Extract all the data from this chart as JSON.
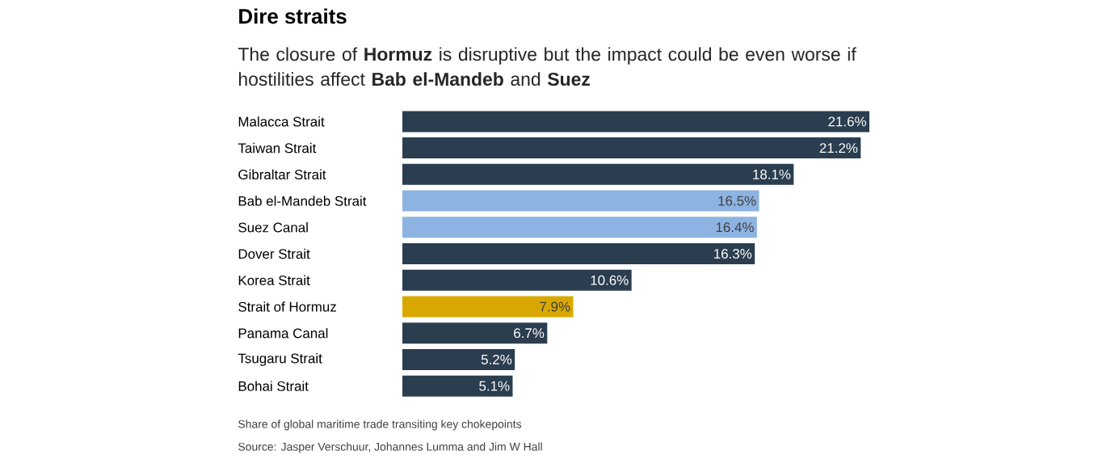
{
  "chart_data": {
    "type": "bar",
    "orientation": "horizontal",
    "title": "Dire straits",
    "subtitle": "The closure of **Hormuz** is disruptive but the impact could be even worse if hostilities affect **Bab el-Mandeb** and **Suez**",
    "categories": [
      "Malacca Strait",
      "Taiwan Strait",
      "Gibraltar Strait",
      "Bab el-Mandeb Strait",
      "Suez Canal",
      "Dover Strait",
      "Korea Strait",
      "Strait of Hormuz",
      "Panama Canal",
      "Tsugaru Strait",
      "Bohai Strait"
    ],
    "values": [
      21.6,
      21.2,
      18.1,
      16.5,
      16.4,
      16.3,
      10.6,
      7.9,
      6.7,
      5.2,
      5.1
    ],
    "colors": [
      "#2b3e50",
      "#2b3e50",
      "#2b3e50",
      "#8db3e2",
      "#8db3e2",
      "#2b3e50",
      "#2b3e50",
      "#d9a800",
      "#2b3e50",
      "#2b3e50",
      "#2b3e50"
    ],
    "value_labels": [
      "21.6%",
      "21.2%",
      "18.1%",
      "16.5%",
      "16.4%",
      "16.3%",
      "10.6%",
      "7.9%",
      "6.7%",
      "5.2%",
      "5.1%"
    ],
    "annotations": [
      "Share of global maritime trade transiting key chokepoints",
      "Source: Jasper Verschuur, Johannes Lumma and Jim W Hall"
    ]
  }
}
